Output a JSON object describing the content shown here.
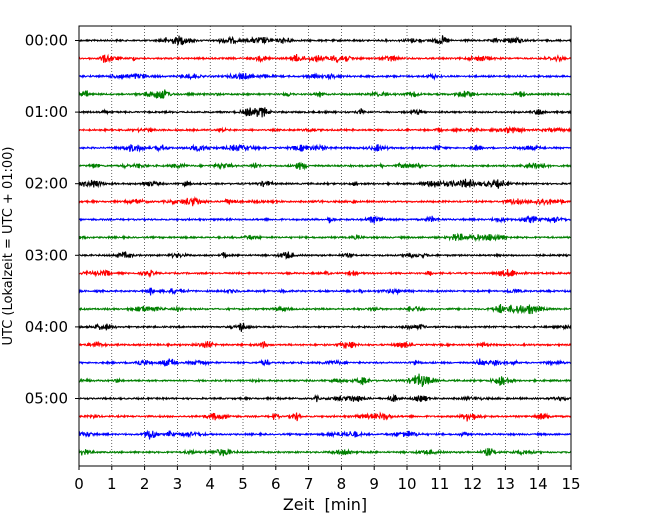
{
  "chart_data": {
    "type": "line",
    "subtype": "helicorder",
    "xlabel": "Zeit  [min]",
    "ylabel": "UTC (Lokalzeit = UTC + 01:00)",
    "xlim": [
      0,
      15
    ],
    "x_ticks": [
      0,
      1,
      2,
      3,
      4,
      5,
      6,
      7,
      8,
      9,
      10,
      11,
      12,
      13,
      14,
      15
    ],
    "x_tick_labels": [
      "0",
      "1",
      "2",
      "3",
      "4",
      "5",
      "6",
      "7",
      "8",
      "9",
      "10",
      "11",
      "12",
      "13",
      "14",
      "15"
    ],
    "y_tick_labels": [
      "00:00",
      "01:00",
      "02:00",
      "03:00",
      "04:00",
      "05:00"
    ],
    "row_minutes": 15,
    "row_count": 24,
    "grid": "vertical dotted",
    "trace_color_cycle": [
      "#000000",
      "#ff0000",
      "#0000ff",
      "#008000"
    ],
    "series": [
      {
        "start": "00:00",
        "color": "#000000"
      },
      {
        "start": "00:15",
        "color": "#ff0000"
      },
      {
        "start": "00:30",
        "color": "#0000ff"
      },
      {
        "start": "00:45",
        "color": "#008000"
      },
      {
        "start": "01:00",
        "color": "#000000"
      },
      {
        "start": "01:15",
        "color": "#ff0000"
      },
      {
        "start": "01:30",
        "color": "#0000ff"
      },
      {
        "start": "01:45",
        "color": "#008000"
      },
      {
        "start": "02:00",
        "color": "#000000"
      },
      {
        "start": "02:15",
        "color": "#ff0000"
      },
      {
        "start": "02:30",
        "color": "#0000ff"
      },
      {
        "start": "02:45",
        "color": "#008000"
      },
      {
        "start": "03:00",
        "color": "#000000"
      },
      {
        "start": "03:15",
        "color": "#ff0000"
      },
      {
        "start": "03:30",
        "color": "#0000ff"
      },
      {
        "start": "03:45",
        "color": "#008000"
      },
      {
        "start": "04:00",
        "color": "#000000"
      },
      {
        "start": "04:15",
        "color": "#ff0000"
      },
      {
        "start": "04:30",
        "color": "#0000ff"
      },
      {
        "start": "04:45",
        "color": "#008000"
      },
      {
        "start": "05:00",
        "color": "#000000"
      },
      {
        "start": "05:15",
        "color": "#ff0000"
      },
      {
        "start": "05:30",
        "color": "#0000ff"
      },
      {
        "start": "05:45",
        "color": "#008000"
      }
    ]
  }
}
